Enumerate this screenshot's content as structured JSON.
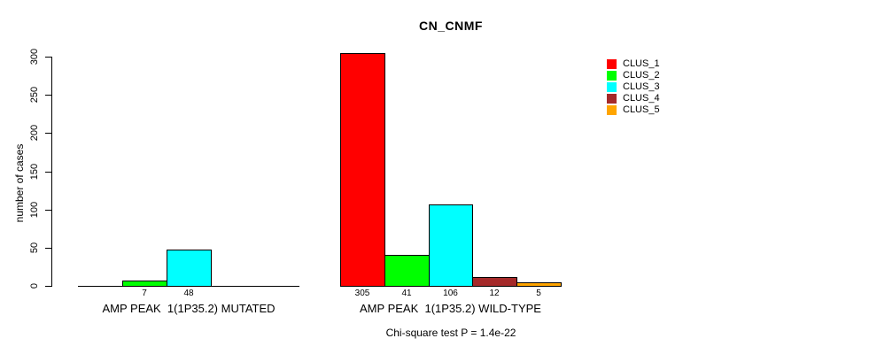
{
  "figure": {
    "background": "#FFFFFF"
  },
  "chart_data": {
    "type": "bar",
    "title": "CN_CNMF",
    "xlabel": "",
    "ylabel": "number of cases",
    "ylim": [
      0,
      300
    ],
    "yticks": [
      0,
      50,
      100,
      150,
      200,
      250,
      300
    ],
    "grid": false,
    "legend_position": "right",
    "categories": [
      "CLUS_1",
      "CLUS_2",
      "CLUS_3",
      "CLUS_4",
      "CLUS_5"
    ],
    "colors": [
      "#FF0000",
      "#00FF00",
      "#00FFFF",
      "#A52A2A",
      "#FFA500"
    ],
    "groups": [
      {
        "label": "AMP PEAK  1(1P35.2) MUTATED",
        "values": [
          0,
          7,
          48,
          0,
          0
        ],
        "value_labels": [
          "",
          "7",
          "48",
          "",
          ""
        ]
      },
      {
        "label": "AMP PEAK  1(1P35.2) WILD-TYPE",
        "values": [
          305,
          41,
          106,
          12,
          5
        ],
        "value_labels": [
          "305",
          "41",
          "106",
          "12",
          "5"
        ]
      }
    ],
    "annotation": "Chi-square test P = 1.4e-22"
  },
  "legend": {
    "entries": [
      {
        "label": "CLUS_1",
        "color": "#FF0000"
      },
      {
        "label": "CLUS_2",
        "color": "#00FF00"
      },
      {
        "label": "CLUS_3",
        "color": "#00FFFF"
      },
      {
        "label": "CLUS_4",
        "color": "#A52A2A"
      },
      {
        "label": "CLUS_5",
        "color": "#FFA500"
      }
    ]
  }
}
